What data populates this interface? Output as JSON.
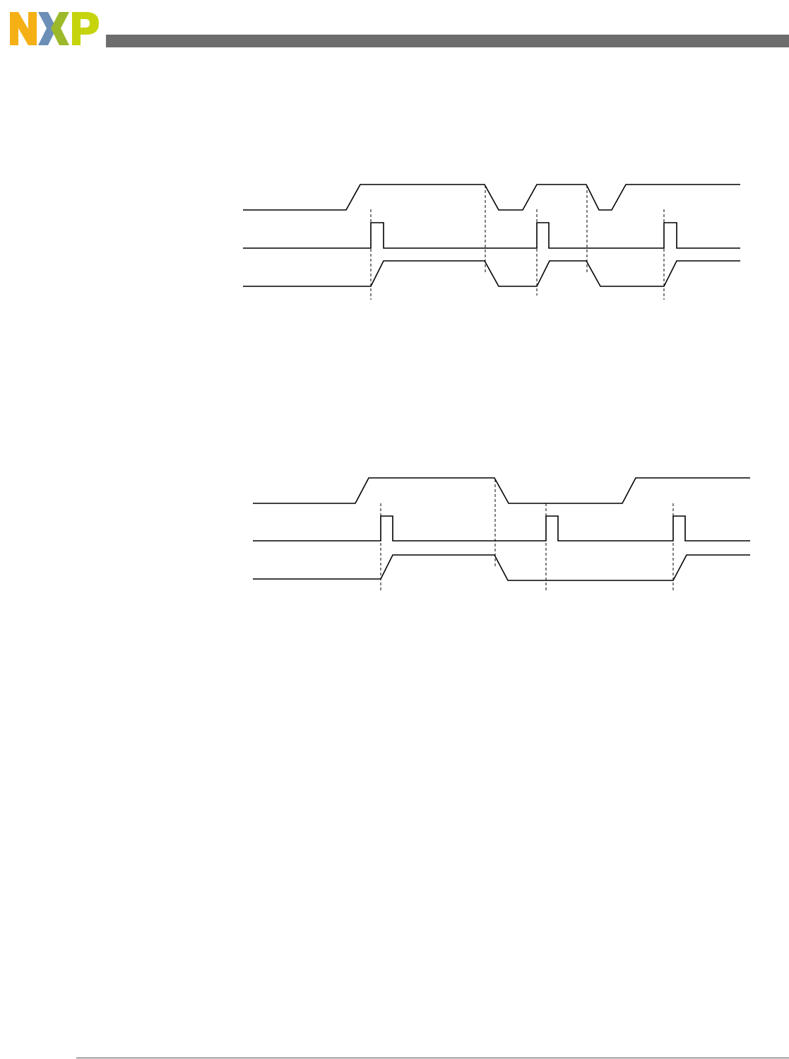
{
  "colors": {
    "header_bar": "#6d6d6d",
    "footer_line": "#555555",
    "waveform": "#000000",
    "guide": "#000000",
    "logo_n": "#f5b015",
    "logo_x_left": "#6c8fb7",
    "logo_x_right": "#9bb92a",
    "logo_p": "#c6d40d"
  },
  "icons": {
    "logo": "nxp-logo-icon"
  },
  "diagrams": [
    {
      "name": "timing-diagram-1",
      "signal_count": 3
    },
    {
      "name": "timing-diagram-2",
      "signal_count": 3
    }
  ]
}
